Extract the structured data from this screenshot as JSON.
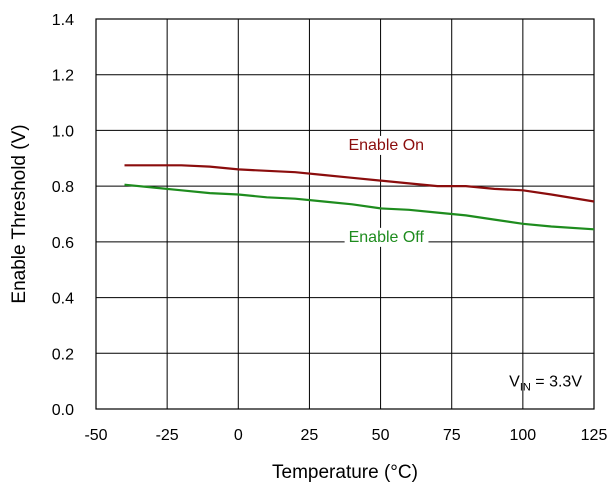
{
  "chart_data": {
    "type": "line",
    "title": "",
    "xlabel": "Temperature  (°C)",
    "ylabel": "Enable Threshold (V)",
    "xlim": [
      -50,
      125
    ],
    "ylim": [
      0.0,
      1.4
    ],
    "x_ticks": [
      -50,
      -25,
      0,
      25,
      50,
      75,
      100,
      125
    ],
    "y_ticks": [
      0.0,
      0.2,
      0.4,
      0.6,
      0.8,
      1.0,
      1.2,
      1.4
    ],
    "x_tick_labels": [
      "-50",
      "-25",
      "0",
      "25",
      "50",
      "75",
      "100",
      "125"
    ],
    "y_tick_labels": [
      "0.0",
      "0.2",
      "0.4",
      "0.6",
      "0.8",
      "1.0",
      "1.2",
      "1.4"
    ],
    "grid": true,
    "series": [
      {
        "name": "Enable On",
        "color": "#8b0d0d",
        "x": [
          -40,
          -30,
          -20,
          -10,
          0,
          10,
          20,
          30,
          40,
          50,
          60,
          70,
          80,
          90,
          100,
          110,
          125
        ],
        "y": [
          0.875,
          0.875,
          0.875,
          0.87,
          0.86,
          0.855,
          0.85,
          0.84,
          0.83,
          0.82,
          0.81,
          0.8,
          0.8,
          0.79,
          0.785,
          0.77,
          0.745
        ]
      },
      {
        "name": "Enable Off",
        "color": "#1e8c1e",
        "x": [
          -40,
          -30,
          -20,
          -10,
          0,
          10,
          20,
          30,
          40,
          50,
          60,
          70,
          80,
          90,
          100,
          110,
          125
        ],
        "y": [
          0.805,
          0.795,
          0.785,
          0.775,
          0.77,
          0.76,
          0.755,
          0.745,
          0.735,
          0.72,
          0.715,
          0.705,
          0.695,
          0.68,
          0.665,
          0.655,
          0.645
        ]
      }
    ],
    "annotations": {
      "on_label": "Enable On",
      "off_label": "Enable Off",
      "vin_prefix": "V",
      "vin_sub": "IN",
      "vin_rest": " = 3.3V"
    }
  }
}
